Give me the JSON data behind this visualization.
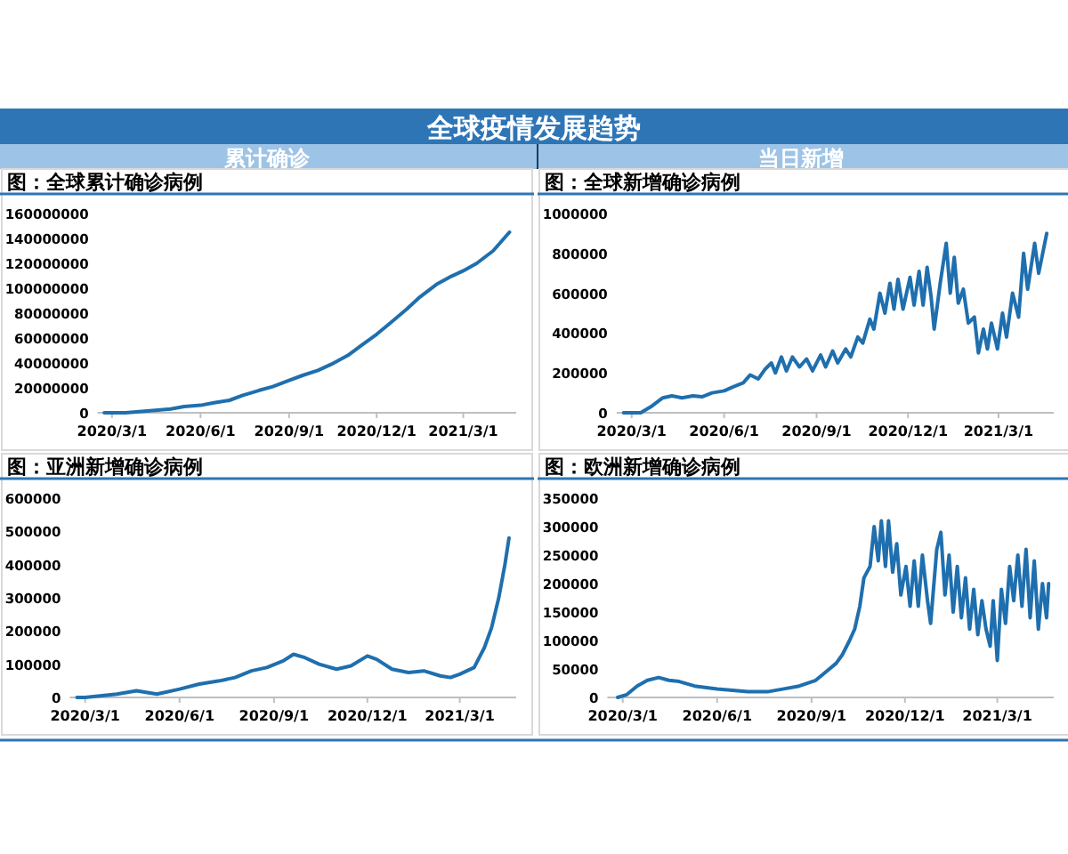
{
  "chart_data": [
    {
      "type": "other",
      "title": "全球疫情发展趋势",
      "annotations": [
        "累计确诊",
        "当日新增"
      ]
    },
    {
      "type": "line",
      "title": "图：全球累计确诊病例",
      "color": "#1f6fae",
      "x": [
        "2020-02-22",
        "2020-03-01",
        "2020-03-15",
        "2020-04-01",
        "2020-04-15",
        "2020-05-01",
        "2020-05-15",
        "2020-06-01",
        "2020-06-15",
        "2020-07-01",
        "2020-07-15",
        "2020-08-01",
        "2020-08-15",
        "2020-09-01",
        "2020-09-15",
        "2020-10-01",
        "2020-10-15",
        "2020-11-01",
        "2020-11-15",
        "2020-12-01",
        "2020-12-15",
        "2021-01-01",
        "2021-01-15",
        "2021-02-01",
        "2021-02-15",
        "2021-03-01",
        "2021-03-15",
        "2021-04-01",
        "2021-04-18"
      ],
      "values": [
        0,
        0,
        0,
        1000000,
        2000000,
        3000000,
        5000000,
        6000000,
        8000000,
        10000000,
        14000000,
        18000000,
        21000000,
        26000000,
        30000000,
        34000000,
        39000000,
        46000000,
        54000000,
        63000000,
        72000000,
        83000000,
        93000000,
        103000000,
        109000000,
        114000000,
        120000000,
        130000000,
        145000000
      ],
      "xlim": [
        "2020-02-15",
        "2021-04-25"
      ],
      "xticks": [
        {
          "value": "2020-03-01",
          "label": "2020/3/1"
        },
        {
          "value": "2020-06-01",
          "label": "2020/6/1"
        },
        {
          "value": "2020-09-01",
          "label": "2020/9/1"
        },
        {
          "value": "2020-12-01",
          "label": "2020/12/1"
        },
        {
          "value": "2021-03-01",
          "label": "2021/3/1"
        }
      ],
      "ylim": [
        0,
        160000000
      ],
      "yticks": [
        0,
        20000000,
        40000000,
        60000000,
        80000000,
        100000000,
        120000000,
        140000000,
        160000000
      ],
      "grid": false
    },
    {
      "type": "line",
      "title": "图：全球新增确诊病例",
      "color": "#1f6fae",
      "x": [
        "2020-02-22",
        "2020-03-01",
        "2020-03-10",
        "2020-03-20",
        "2020-04-01",
        "2020-04-10",
        "2020-04-20",
        "2020-05-01",
        "2020-05-10",
        "2020-05-20",
        "2020-06-01",
        "2020-06-10",
        "2020-06-20",
        "2020-06-27",
        "2020-07-05",
        "2020-07-12",
        "2020-07-18",
        "2020-07-22",
        "2020-07-28",
        "2020-08-02",
        "2020-08-08",
        "2020-08-15",
        "2020-08-22",
        "2020-08-28",
        "2020-09-05",
        "2020-09-10",
        "2020-09-17",
        "2020-09-22",
        "2020-09-30",
        "2020-10-05",
        "2020-10-12",
        "2020-10-17",
        "2020-10-24",
        "2020-10-28",
        "2020-11-03",
        "2020-11-08",
        "2020-11-13",
        "2020-11-17",
        "2020-11-21",
        "2020-11-26",
        "2020-12-03",
        "2020-12-07",
        "2020-12-12",
        "2020-12-16",
        "2020-12-20",
        "2020-12-24",
        "2020-12-27",
        "2021-01-02",
        "2021-01-08",
        "2021-01-12",
        "2021-01-16",
        "2021-01-20",
        "2021-01-25",
        "2021-01-30",
        "2021-02-05",
        "2021-02-09",
        "2021-02-14",
        "2021-02-18",
        "2021-02-22",
        "2021-02-28",
        "2021-03-05",
        "2021-03-09",
        "2021-03-15",
        "2021-03-21",
        "2021-03-26",
        "2021-03-30",
        "2021-04-06",
        "2021-04-10",
        "2021-04-18"
      ],
      "values": [
        0,
        0,
        0,
        30000,
        75000,
        85000,
        75000,
        85000,
        80000,
        100000,
        110000,
        130000,
        150000,
        190000,
        170000,
        220000,
        250000,
        200000,
        280000,
        210000,
        280000,
        230000,
        270000,
        210000,
        290000,
        230000,
        310000,
        250000,
        320000,
        280000,
        380000,
        350000,
        470000,
        420000,
        600000,
        500000,
        650000,
        520000,
        670000,
        520000,
        680000,
        540000,
        710000,
        540000,
        730000,
        580000,
        420000,
        650000,
        850000,
        600000,
        780000,
        550000,
        620000,
        450000,
        480000,
        300000,
        420000,
        320000,
        450000,
        320000,
        500000,
        380000,
        600000,
        480000,
        800000,
        620000,
        850000,
        700000,
        900000
      ],
      "xlim": [
        "2020-02-15",
        "2021-04-25"
      ],
      "xticks": [
        {
          "value": "2020-03-01",
          "label": "2020/3/1"
        },
        {
          "value": "2020-06-01",
          "label": "2020/6/1"
        },
        {
          "value": "2020-09-01",
          "label": "2020/9/1"
        },
        {
          "value": "2020-12-01",
          "label": "2020/12/1"
        },
        {
          "value": "2021-03-01",
          "label": "2021/3/1"
        }
      ],
      "ylim": [
        0,
        1000000
      ],
      "yticks": [
        0,
        200000,
        400000,
        600000,
        800000,
        1000000
      ],
      "grid": false
    },
    {
      "type": "line",
      "title": "图：亚洲新增确诊病例",
      "color": "#1f6fae",
      "x": [
        "2020-02-22",
        "2020-03-01",
        "2020-04-01",
        "2020-04-20",
        "2020-05-10",
        "2020-06-01",
        "2020-06-20",
        "2020-07-10",
        "2020-07-25",
        "2020-08-10",
        "2020-08-25",
        "2020-09-10",
        "2020-09-20",
        "2020-10-01",
        "2020-10-15",
        "2020-11-01",
        "2020-11-15",
        "2020-12-01",
        "2020-12-10",
        "2020-12-25",
        "2021-01-10",
        "2021-01-25",
        "2021-02-10",
        "2021-02-20",
        "2021-03-01",
        "2021-03-15",
        "2021-03-25",
        "2021-04-01",
        "2021-04-08",
        "2021-04-14",
        "2021-04-18"
      ],
      "values": [
        0,
        0,
        10000,
        20000,
        10000,
        25000,
        40000,
        50000,
        60000,
        80000,
        90000,
        110000,
        130000,
        120000,
        100000,
        85000,
        95000,
        125000,
        115000,
        85000,
        75000,
        80000,
        65000,
        60000,
        70000,
        90000,
        150000,
        210000,
        300000,
        400000,
        480000
      ],
      "xlim": [
        "2020-02-15",
        "2021-04-25"
      ],
      "xticks": [
        {
          "value": "2020-03-01",
          "label": "2020/3/1"
        },
        {
          "value": "2020-06-01",
          "label": "2020/6/1"
        },
        {
          "value": "2020-09-01",
          "label": "2020/9/1"
        },
        {
          "value": "2020-12-01",
          "label": "2020/12/1"
        },
        {
          "value": "2021-03-01",
          "label": "2021/3/1"
        }
      ],
      "ylim": [
        0,
        600000
      ],
      "yticks": [
        0,
        100000,
        200000,
        300000,
        400000,
        500000,
        600000
      ],
      "grid": false
    },
    {
      "type": "line",
      "title": "图：欧洲新增确诊病例",
      "color": "#1f6fae",
      "x": [
        "2020-02-25",
        "2020-03-05",
        "2020-03-15",
        "2020-03-25",
        "2020-04-05",
        "2020-04-15",
        "2020-04-25",
        "2020-05-10",
        "2020-06-01",
        "2020-07-01",
        "2020-07-20",
        "2020-08-05",
        "2020-08-20",
        "2020-09-05",
        "2020-09-15",
        "2020-09-25",
        "2020-10-01",
        "2020-10-08",
        "2020-10-13",
        "2020-10-18",
        "2020-10-22",
        "2020-10-28",
        "2020-11-01",
        "2020-11-05",
        "2020-11-08",
        "2020-11-12",
        "2020-11-15",
        "2020-11-19",
        "2020-11-23",
        "2020-11-27",
        "2020-12-02",
        "2020-12-06",
        "2020-12-10",
        "2020-12-14",
        "2020-12-18",
        "2020-12-23",
        "2020-12-26",
        "2021-01-01",
        "2021-01-05",
        "2021-01-09",
        "2021-01-13",
        "2021-01-17",
        "2021-01-21",
        "2021-01-25",
        "2021-01-29",
        "2021-02-02",
        "2021-02-06",
        "2021-02-10",
        "2021-02-14",
        "2021-02-18",
        "2021-02-22",
        "2021-02-25",
        "2021-03-01",
        "2021-03-05",
        "2021-03-09",
        "2021-03-13",
        "2021-03-17",
        "2021-03-21",
        "2021-03-25",
        "2021-03-29",
        "2021-04-02",
        "2021-04-06",
        "2021-04-10",
        "2021-04-14",
        "2021-04-18",
        "2021-04-20"
      ],
      "values": [
        0,
        5000,
        20000,
        30000,
        35000,
        30000,
        28000,
        20000,
        15000,
        10000,
        10000,
        15000,
        20000,
        30000,
        45000,
        60000,
        75000,
        100000,
        120000,
        160000,
        210000,
        230000,
        300000,
        240000,
        310000,
        230000,
        310000,
        220000,
        270000,
        180000,
        230000,
        160000,
        240000,
        160000,
        250000,
        170000,
        130000,
        260000,
        290000,
        180000,
        250000,
        150000,
        230000,
        140000,
        210000,
        120000,
        190000,
        110000,
        170000,
        120000,
        90000,
        170000,
        65000,
        190000,
        130000,
        230000,
        170000,
        250000,
        160000,
        260000,
        140000,
        240000,
        120000,
        200000,
        140000,
        200000
      ],
      "xlim": [
        "2020-02-15",
        "2021-04-25"
      ],
      "xticks": [
        {
          "value": "2020-03-01",
          "label": "2020/3/1"
        },
        {
          "value": "2020-06-01",
          "label": "2020/6/1"
        },
        {
          "value": "2020-09-01",
          "label": "2020/9/1"
        },
        {
          "value": "2020-12-01",
          "label": "2020/12/1"
        },
        {
          "value": "2021-03-01",
          "label": "2021/3/1"
        }
      ],
      "ylim": [
        0,
        350000
      ],
      "yticks": [
        0,
        50000,
        100000,
        150000,
        200000,
        250000,
        300000,
        350000
      ],
      "grid": false
    }
  ]
}
